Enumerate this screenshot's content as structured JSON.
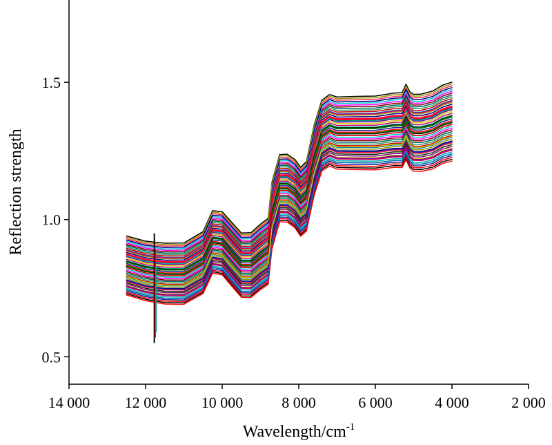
{
  "chart_data": {
    "type": "line",
    "title": "",
    "xlabel": "Wavelength/cm",
    "xlabel_sup": "-1",
    "ylabel": "Reflection strength",
    "xlim": [
      14000,
      2000
    ],
    "ylim": [
      0.4,
      1.8
    ],
    "x_reversed": true,
    "grid": false,
    "legend": "none",
    "x_ticks": [
      14000,
      12000,
      10000,
      8000,
      6000,
      4000,
      2000
    ],
    "x_tick_labels": [
      "14 000",
      "12 000",
      "10 000",
      "8 000",
      "6 000",
      "4 000",
      "2 000"
    ],
    "y_ticks": [
      0.5,
      1.0,
      1.5
    ],
    "y_tick_labels": [
      "0.5",
      "1.0",
      "1.5"
    ],
    "base_spectrum": {
      "x": [
        12500,
        12000,
        11750,
        11500,
        11000,
        10500,
        10250,
        10000,
        9750,
        9500,
        9250,
        9000,
        8800,
        8700,
        8500,
        8300,
        8100,
        7950,
        7800,
        7600,
        7400,
        7200,
        7000,
        6800,
        6500,
        6000,
        5500,
        5300,
        5200,
        5100,
        5000,
        4800,
        4500,
        4250,
        4000
      ],
      "y": [
        0.82,
        0.8,
        0.795,
        0.79,
        0.79,
        0.83,
        0.905,
        0.9,
        0.86,
        0.82,
        0.82,
        0.85,
        0.87,
        1.0,
        1.1,
        1.1,
        1.08,
        1.05,
        1.07,
        1.2,
        1.29,
        1.31,
        1.3,
        1.3,
        1.3,
        1.3,
        1.31,
        1.31,
        1.34,
        1.31,
        1.3,
        1.3,
        1.31,
        1.33,
        1.34
      ]
    },
    "series_offsets": [
      -0.09,
      -0.085,
      -0.08,
      -0.075,
      -0.07,
      -0.065,
      -0.06,
      -0.055,
      -0.05,
      -0.045,
      -0.04,
      -0.035,
      -0.03,
      -0.025,
      -0.02,
      -0.015,
      -0.01,
      -0.005,
      0.0,
      0.005,
      0.01,
      0.015,
      0.02,
      0.025,
      0.03,
      0.035,
      0.04,
      0.045,
      0.05,
      0.055,
      0.06,
      0.065,
      0.07,
      0.075,
      0.08,
      0.085,
      0.09,
      0.095,
      0.1,
      0.11,
      0.12,
      -0.095,
      -0.042,
      0.012,
      0.048,
      0.068,
      -0.028,
      -0.062,
      0.028,
      0.052,
      0.105,
      0.115,
      -0.075,
      0.005
    ],
    "series_colors": [
      "#000000",
      "#ff0000",
      "#1f1f99",
      "#008000",
      "#00b0b0",
      "#cc0066",
      "#cccc00",
      "#800080",
      "#003300",
      "#ff0033",
      "#000080",
      "#999900",
      "#0070c0",
      "#cc0000",
      "#339966",
      "#006666",
      "#800000",
      "#ff00ff",
      "#00cccc",
      "#ff3366"
    ],
    "spike": {
      "x": 11750,
      "y_min": 0.55,
      "y_max": 0.95,
      "colors": [
        "#000000",
        "#cc0000",
        "#00a0a0"
      ]
    }
  }
}
